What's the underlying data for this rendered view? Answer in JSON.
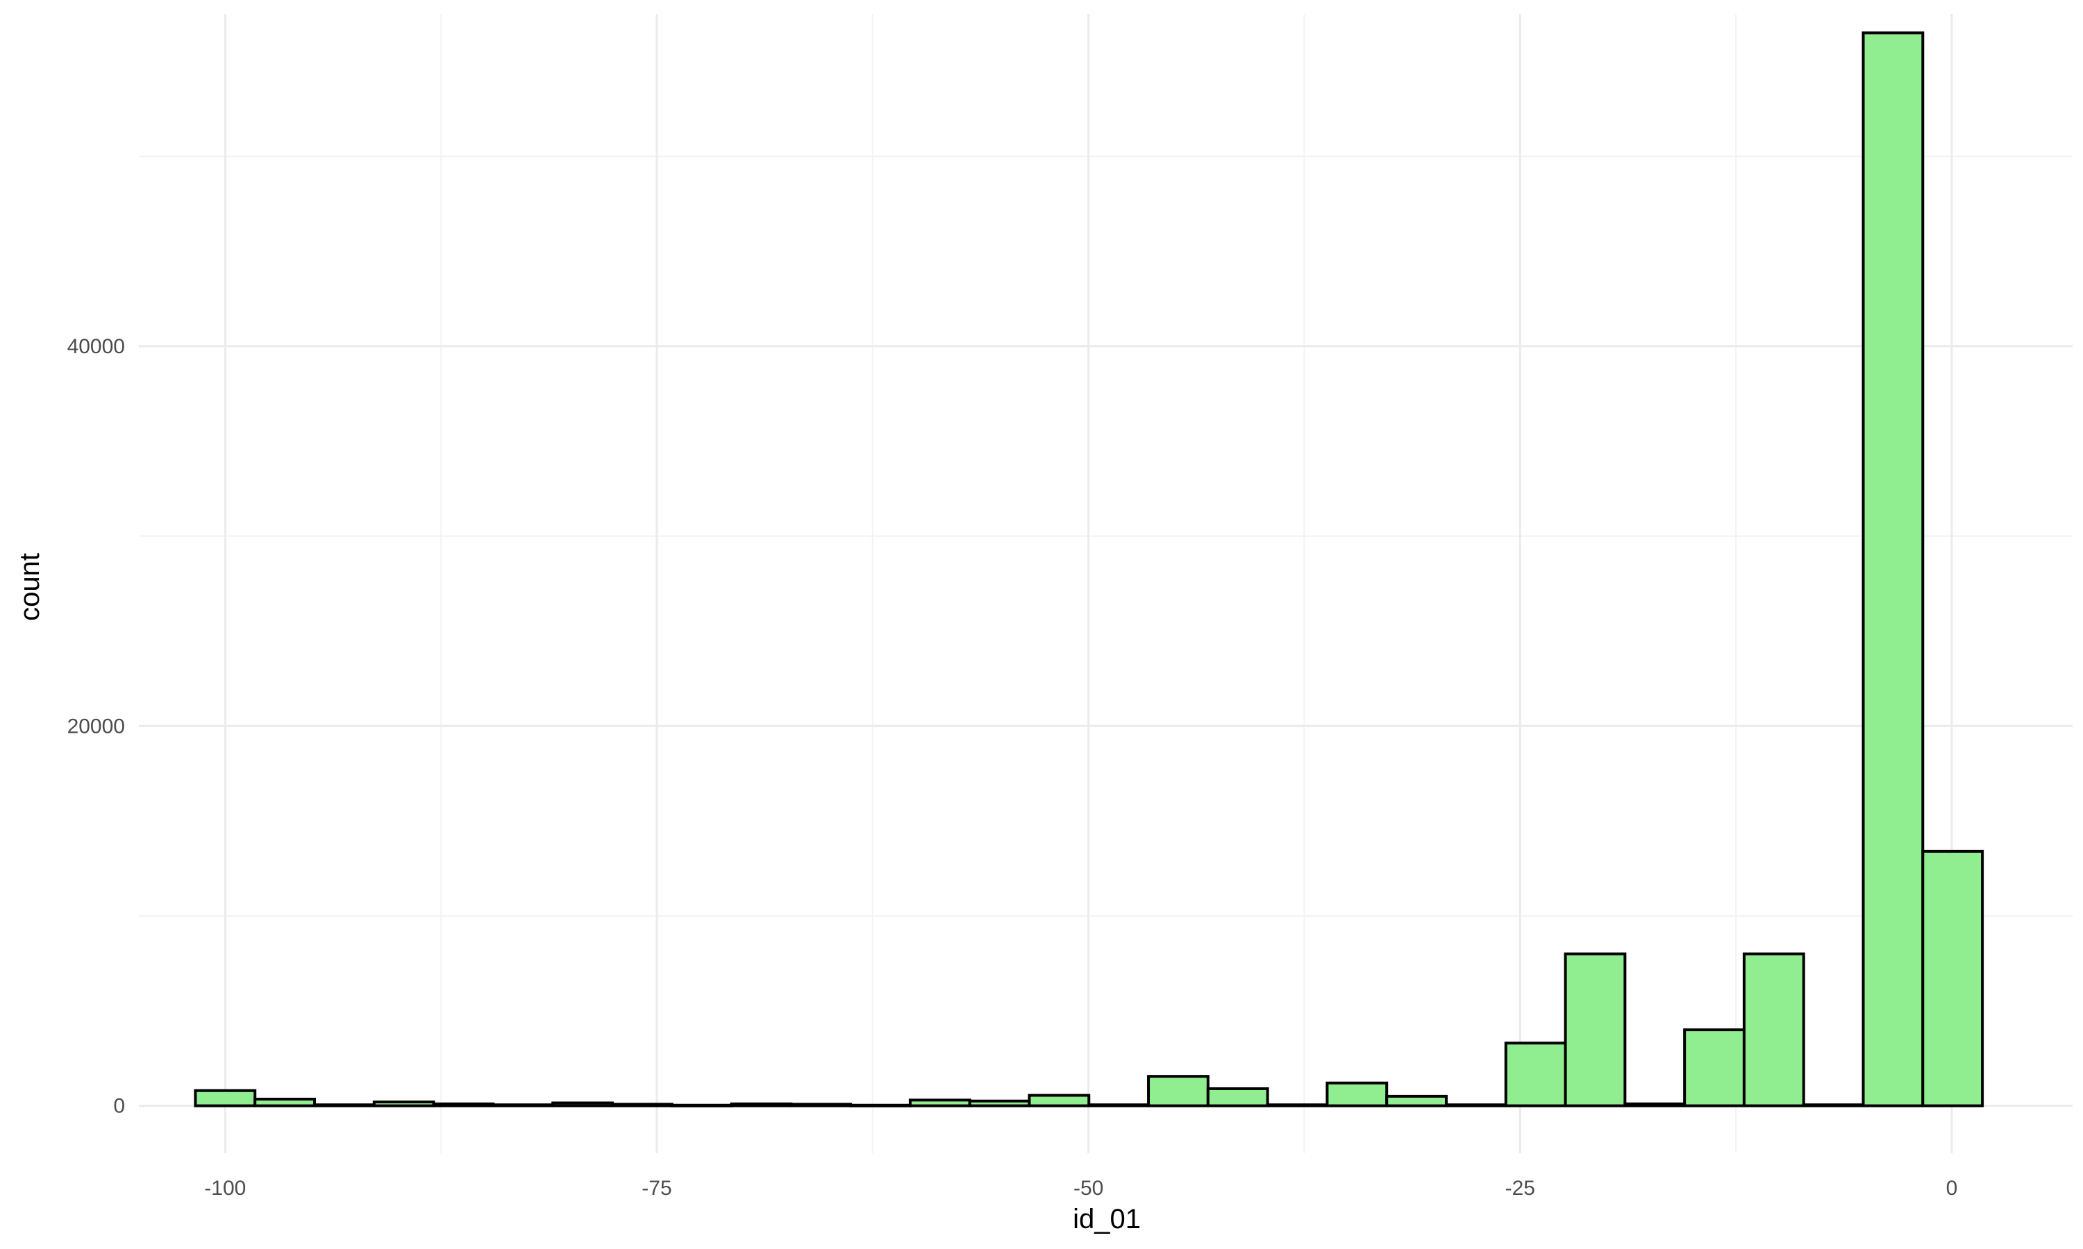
{
  "chart_data": {
    "type": "bar",
    "xlabel": "id_01",
    "ylabel": "count",
    "xlim": [
      -105,
      7
    ],
    "ylim": [
      -2500,
      57500
    ],
    "bin_width": 3.45,
    "x_ticks": [
      -100,
      -75,
      -50,
      -25,
      0
    ],
    "x_tick_labels": [
      "-100",
      "-75",
      "-50",
      "-25",
      "0"
    ],
    "y_ticks": [
      0,
      20000,
      40000
    ],
    "y_tick_labels": [
      "0",
      "20000",
      "40000"
    ],
    "x_minor_ticks": [
      -87.5,
      -62.5,
      -37.5,
      -12.5
    ],
    "y_minor_ticks": [
      10000,
      30000,
      50000
    ],
    "grid": true,
    "bins": [
      {
        "x": -100.0,
        "count": 800
      },
      {
        "x": -96.55,
        "count": 350
      },
      {
        "x": -93.1,
        "count": 50
      },
      {
        "x": -89.65,
        "count": 200
      },
      {
        "x": -86.2,
        "count": 100
      },
      {
        "x": -82.75,
        "count": 50
      },
      {
        "x": -79.3,
        "count": 150
      },
      {
        "x": -75.85,
        "count": 80
      },
      {
        "x": -72.4,
        "count": 30
      },
      {
        "x": -68.95,
        "count": 100
      },
      {
        "x": -65.5,
        "count": 80
      },
      {
        "x": -62.05,
        "count": 30
      },
      {
        "x": -58.6,
        "count": 300
      },
      {
        "x": -55.15,
        "count": 250
      },
      {
        "x": -51.7,
        "count": 550
      },
      {
        "x": -48.25,
        "count": 50
      },
      {
        "x": -44.8,
        "count": 1550
      },
      {
        "x": -41.35,
        "count": 900
      },
      {
        "x": -37.9,
        "count": 50
      },
      {
        "x": -34.45,
        "count": 1200
      },
      {
        "x": -31.0,
        "count": 500
      },
      {
        "x": -27.55,
        "count": 50
      },
      {
        "x": -24.1,
        "count": 3300
      },
      {
        "x": -20.65,
        "count": 8000
      },
      {
        "x": -17.2,
        "count": 100
      },
      {
        "x": -13.75,
        "count": 4000
      },
      {
        "x": -10.3,
        "count": 8000
      },
      {
        "x": -6.85,
        "count": 50
      },
      {
        "x": -3.4,
        "count": 56500
      },
      {
        "x": 0.05,
        "count": 13400
      }
    ],
    "colors": {
      "fill": "#90ee90",
      "stroke": "#000000",
      "grid_major": "#ebebeb",
      "grid_minor": "#f3f3f3"
    }
  }
}
